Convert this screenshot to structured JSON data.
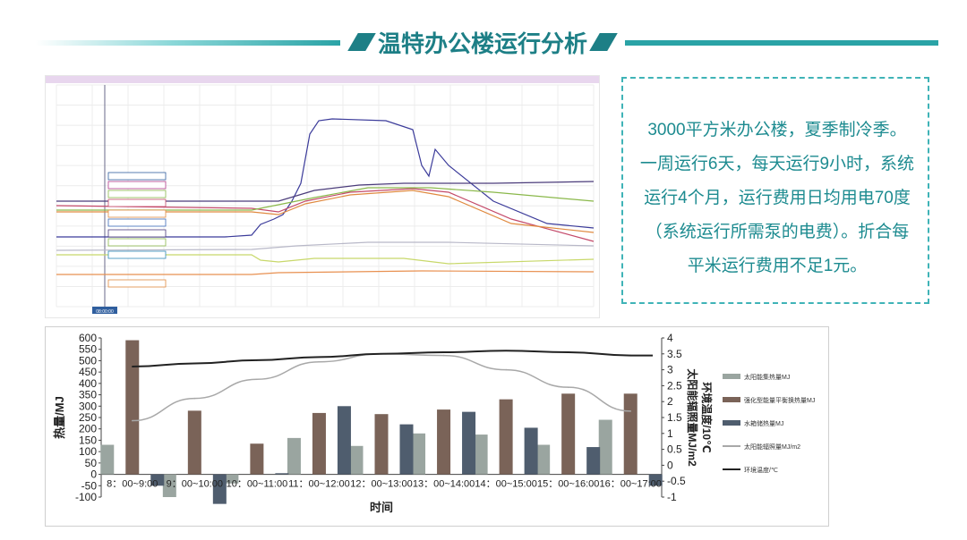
{
  "header": {
    "title": "温特办公楼运行分析"
  },
  "description": {
    "lines": [
      "3000平方米办公楼，夏季制冷季。",
      "一周运行6天，每天运行9小时，系统",
      "运行4个月，运行费用日均用电70度",
      "（系统运行所需泵的电费）。折合每",
      "平米运行费用不足1元。"
    ]
  },
  "monitor": {
    "highlight_tick": "08:00:00"
  },
  "colors": {
    "accent": "#1d7f86",
    "bar_series1": "#9aa5a0",
    "bar_series2": "#7a6358",
    "bar_series3": "#4f5d6e",
    "line_radiation": "#a8a8a8",
    "line_temp": "#222222"
  },
  "chart_data": {
    "type": "bar",
    "categories": [
      "8：00~9:00",
      "9：00~10:00",
      "10：00~11:00",
      "11：00~12:00",
      "12：00~13:00",
      "13：00~14:00",
      "14：00~15:00",
      "15：00~16:00",
      "16：00~17:00"
    ],
    "series": [
      {
        "name": "太阳能集热量MJ",
        "kind": "bar",
        "axis": "left",
        "values": [
          130,
          -100,
          -40,
          160,
          125,
          180,
          175,
          130,
          240
        ]
      },
      {
        "name": "强化型能量平衡换热量MJ",
        "kind": "bar",
        "axis": "left",
        "values": [
          590,
          280,
          135,
          270,
          265,
          285,
          330,
          355,
          355
        ]
      },
      {
        "name": "水箱储热量MJ",
        "kind": "bar",
        "axis": "left",
        "values": [
          -50,
          -130,
          5,
          300,
          220,
          275,
          205,
          120,
          -50
        ]
      },
      {
        "name": "太阳能辐照量MJ/m2",
        "kind": "line",
        "axis": "right",
        "values": [
          1.4,
          2.1,
          2.7,
          3.25,
          3.5,
          3.45,
          3.0,
          2.45,
          1.7
        ]
      },
      {
        "name": "环境温度/℃",
        "kind": "line",
        "axis": "right",
        "values": [
          3.1,
          3.2,
          3.3,
          3.4,
          3.5,
          3.55,
          3.6,
          3.55,
          3.45
        ],
        "extend_last": 3.45
      }
    ],
    "xlabel": "时间",
    "ylabel": "热量/MJ",
    "y2label_lines": [
      "太阳能辐照量MJ/m2",
      "环境温度/10℃"
    ],
    "ylim": [
      -100,
      600
    ],
    "yticks": [
      -100,
      -50,
      0,
      50,
      100,
      150,
      200,
      250,
      300,
      350,
      400,
      450,
      500,
      550,
      600
    ],
    "y2lim": [
      -1,
      4
    ],
    "y2ticks": [
      -1,
      -0.5,
      0,
      0.5,
      1,
      1.5,
      2,
      2.5,
      3,
      3.5,
      4
    ],
    "legend_position": "right"
  }
}
